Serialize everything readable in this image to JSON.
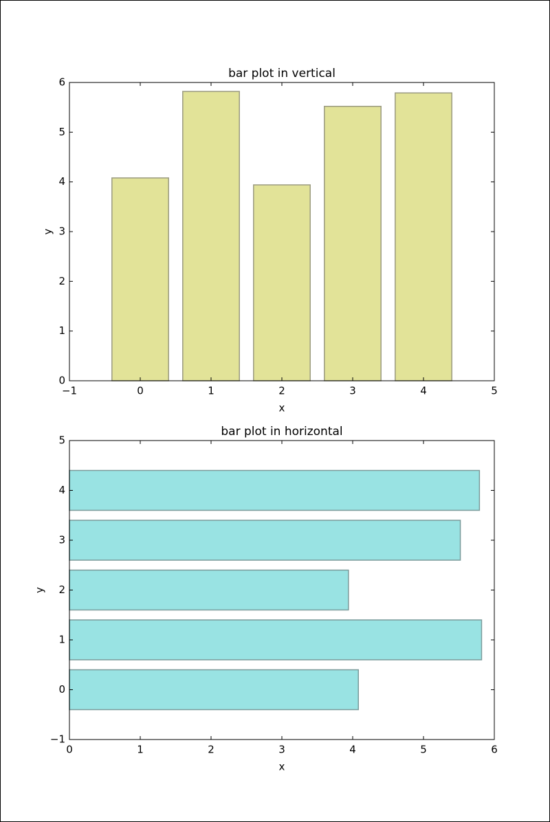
{
  "chart_data": [
    {
      "type": "bar",
      "title": "bar plot in vertical",
      "x_label": "x",
      "y_label": "y",
      "x": [
        0,
        1,
        2,
        3,
        4
      ],
      "values": [
        4.08,
        5.82,
        3.94,
        5.52,
        5.79
      ],
      "bar_width": 0.8,
      "color": "#e2e398",
      "edge_color": "#9a9a80",
      "xlim": [
        -1,
        5
      ],
      "xticks": [
        {
          "value": -1,
          "label": "−1"
        },
        0,
        1,
        2,
        3,
        4,
        5
      ],
      "ylim": [
        0,
        6
      ],
      "yticks": [
        0,
        1,
        2,
        3,
        4,
        5,
        6
      ]
    },
    {
      "type": "barh",
      "title": "bar plot in horizontal",
      "x_label": "x",
      "y_label": "y",
      "y": [
        0,
        1,
        2,
        3,
        4
      ],
      "values": [
        4.08,
        5.82,
        3.94,
        5.52,
        5.79
      ],
      "bar_width": 0.8,
      "color": "#99e3e3",
      "edge_color": "#7a9a9a",
      "xlim": [
        0,
        6
      ],
      "xticks": [
        0,
        1,
        2,
        3,
        4,
        5,
        6
      ],
      "ylim": [
        -1,
        5
      ],
      "yticks": [
        {
          "value": -1,
          "label": "−1"
        },
        0,
        1,
        2,
        3,
        4,
        5
      ]
    }
  ]
}
